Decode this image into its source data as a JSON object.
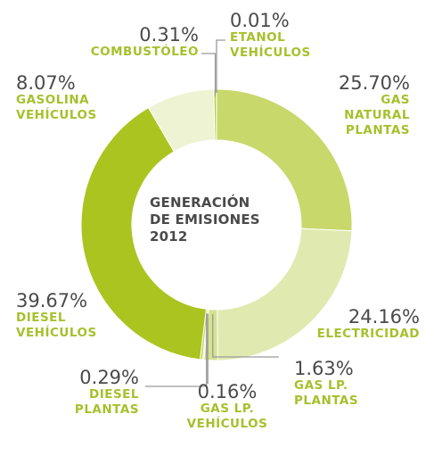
{
  "center": {
    "line1": "GENERACIÓN",
    "line2": "DE EMISIONES",
    "line3": "2012"
  },
  "chart_data": {
    "type": "pie",
    "title": "GENERACIÓN DE EMISIONES 2012",
    "slices": [
      {
        "label": "GAS NATURAL PLANTAS",
        "value": 25.7,
        "text": "25.70%",
        "color": "#c8d86a",
        "name_lines": [
          "GAS",
          "NATURAL",
          "PLANTAS"
        ]
      },
      {
        "label": "ELECTRICIDAD",
        "value": 24.16,
        "text": "24.16%",
        "color": "#e0eab0",
        "name_lines": [
          "ELECTRICIDAD"
        ]
      },
      {
        "label": "GAS LP. PLANTAS",
        "value": 1.63,
        "text": "1.63%",
        "color": "#d6e290",
        "name_lines": [
          "GAS LP.",
          "PLANTAS"
        ]
      },
      {
        "label": "GAS LP. VEHÍCULOS",
        "value": 0.16,
        "text": "0.16%",
        "color": "#dbe6a0",
        "name_lines": [
          "GAS LP.",
          "VEHÍCULOS"
        ]
      },
      {
        "label": "DIESEL PLANTAS",
        "value": 0.29,
        "text": "0.29%",
        "color": "#c2d45a",
        "name_lines": [
          "DIESEL",
          "PLANTAS"
        ]
      },
      {
        "label": "DIESEL VEHÍCULOS",
        "value": 39.67,
        "text": "39.67%",
        "color": "#abc41f",
        "name_lines": [
          "DIESEL",
          "VEHÍCULOS"
        ]
      },
      {
        "label": "GASOLINA VEHÍCULOS",
        "value": 8.07,
        "text": "8.07%",
        "color": "#eef3d4",
        "name_lines": [
          "GASOLINA",
          "VEHÍCULOS"
        ]
      },
      {
        "label": "COMBUSTÓLEO",
        "value": 0.31,
        "text": "0.31%",
        "color": "#b9cc46",
        "name_lines": [
          "COMBUSTÓLEO"
        ]
      },
      {
        "label": "ETANOL VEHÍCULOS",
        "value": 0.01,
        "text": "0.01%",
        "color": "#9fb81a",
        "name_lines": [
          "ETANOL",
          "VEHÍCULOS"
        ]
      }
    ],
    "label_color": "#a6c02c",
    "value_color": "#4a4a4a",
    "leader_color": "#9a9a9a"
  }
}
